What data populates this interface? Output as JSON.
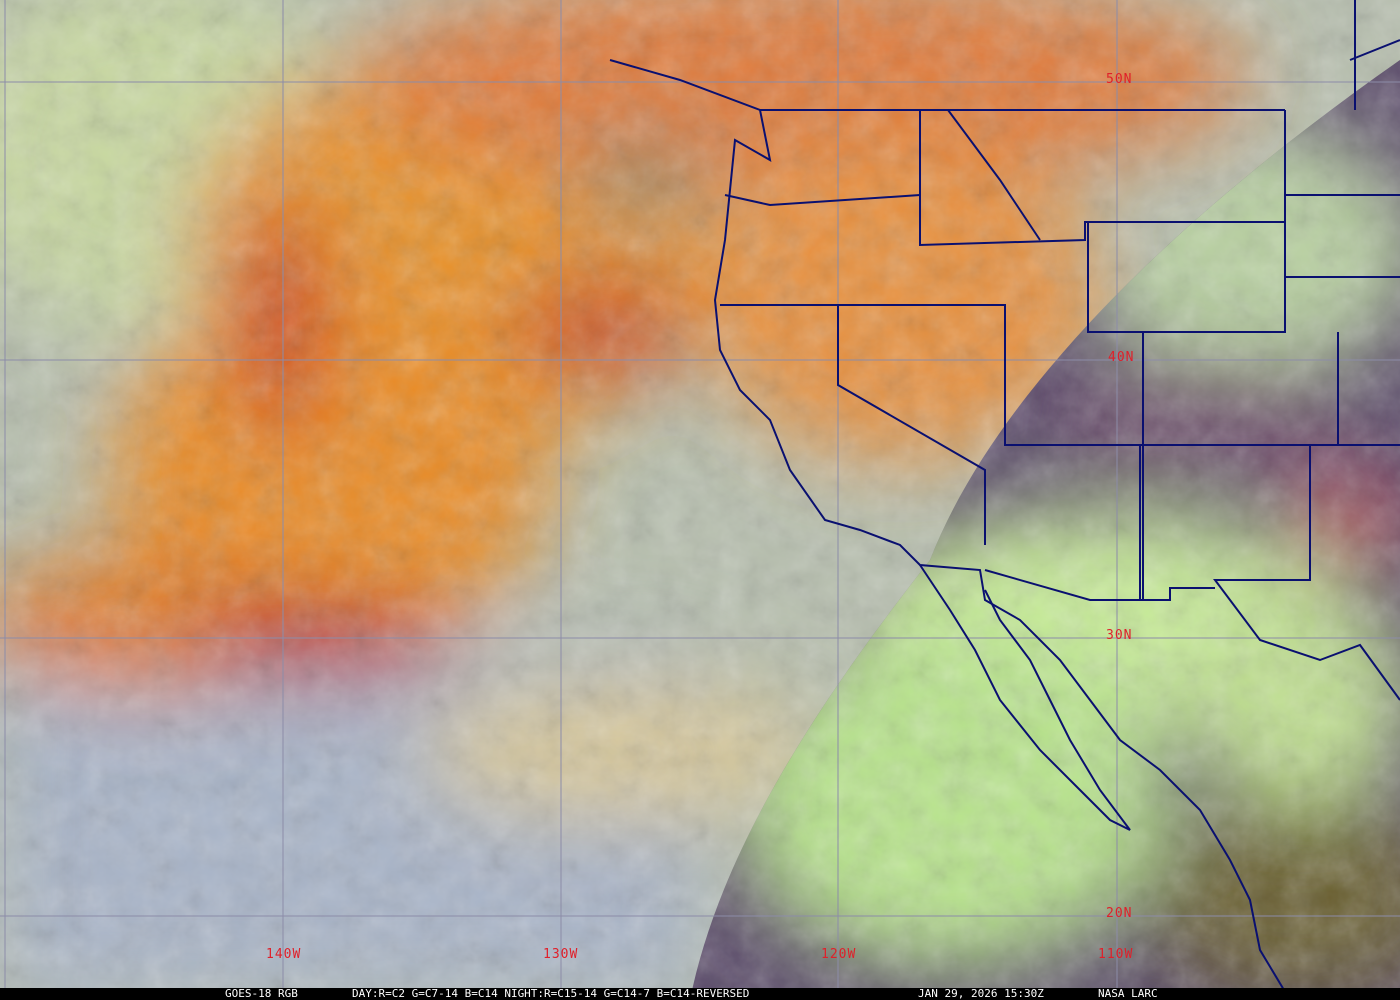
{
  "image": {
    "type": "satellite-rgb-composite",
    "colors": {
      "ocean": "#b7bfae",
      "storm": "#e88a2a",
      "storm_core": "#c9301f",
      "night_side": "#5a4a6a",
      "land_clouds": "#bfe890",
      "borders": "#0a1070",
      "grid": "#8c8ca8",
      "labels": "#e0202a"
    }
  },
  "grid_labels": {
    "lat": [
      "50N",
      "40N",
      "30N",
      "20N"
    ],
    "lon": [
      "140W",
      "130W",
      "120W",
      "110W"
    ]
  },
  "caption": {
    "product": "GOES-18 RGB",
    "recipe": "DAY:R=C2 G=C7-14 B=C14 NIGHT:R=C15-14 G=C14-7 B=C14-REVERSED",
    "timestamp": "JAN 29, 2026 15:30Z",
    "credit": "NASA LARC"
  }
}
